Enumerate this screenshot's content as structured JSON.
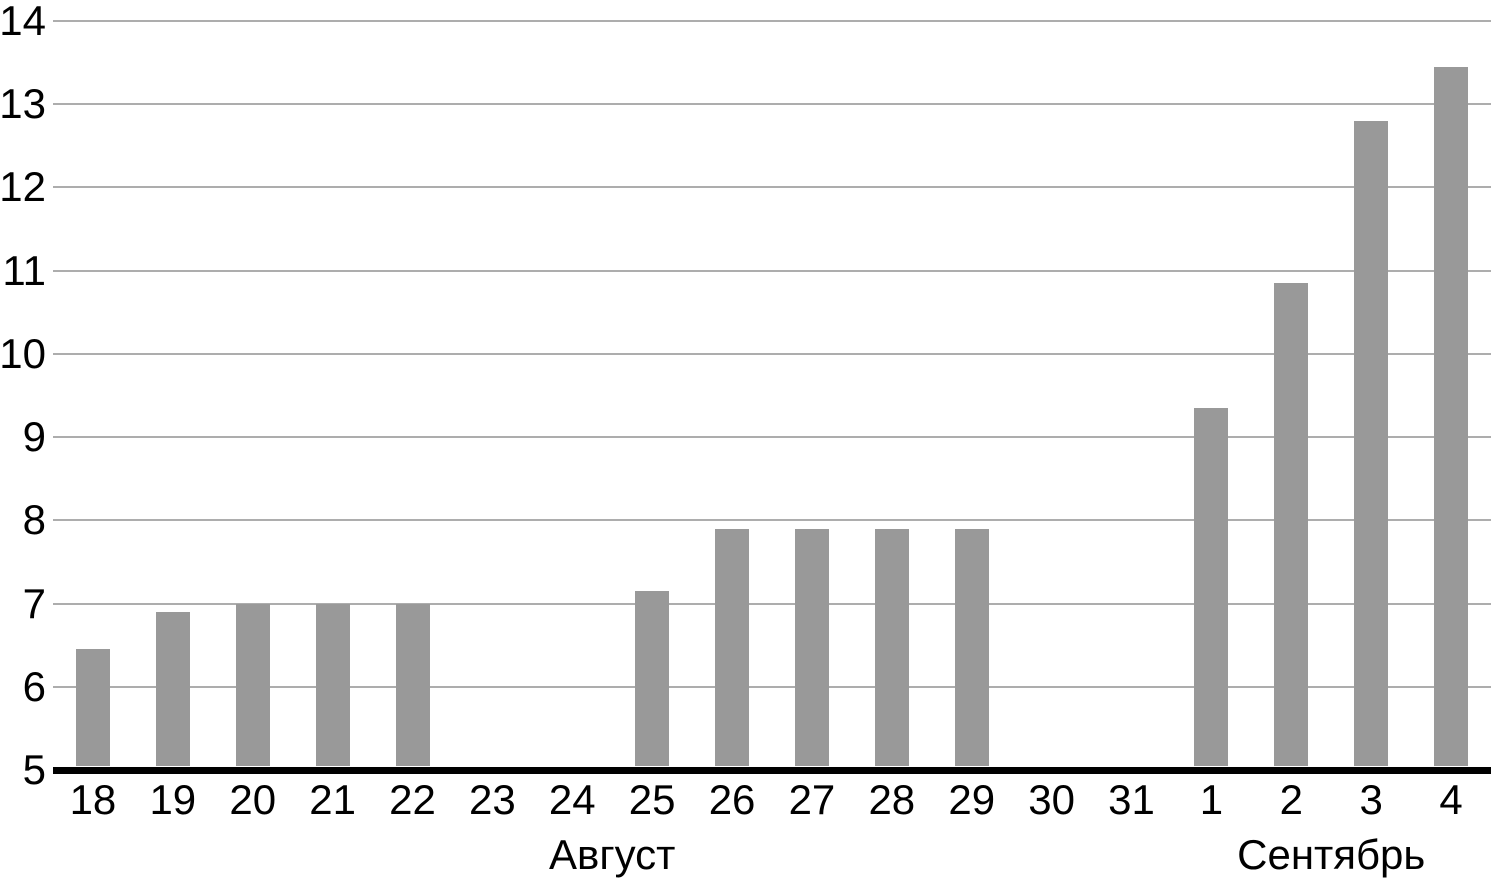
{
  "chart_data": {
    "type": "bar",
    "title": "",
    "xlabel": "",
    "ylabel": "",
    "categories": [
      "18",
      "19",
      "20",
      "21",
      "22",
      "23",
      "24",
      "25",
      "26",
      "27",
      "28",
      "29",
      "30",
      "31",
      "1",
      "2",
      "3",
      "4"
    ],
    "values": [
      6.45,
      6.9,
      7,
      7,
      7,
      null,
      null,
      7.15,
      7.9,
      7.9,
      7.9,
      7.9,
      null,
      null,
      9.35,
      10.85,
      12.8,
      13.45
    ],
    "month_groups": [
      {
        "label": "Август",
        "start_index": 0,
        "end_index": 13
      },
      {
        "label": "Сентябрь",
        "start_index": 14,
        "end_index": 17
      }
    ],
    "y_ticks": [
      5,
      6,
      7,
      8,
      9,
      10,
      11,
      12,
      13,
      14
    ],
    "ylim": [
      5,
      14
    ],
    "grid": true,
    "legend": "none",
    "colors": {
      "bar": "#999999",
      "gridline": "#adadad",
      "axis": "#000000",
      "text": "#000000"
    }
  }
}
